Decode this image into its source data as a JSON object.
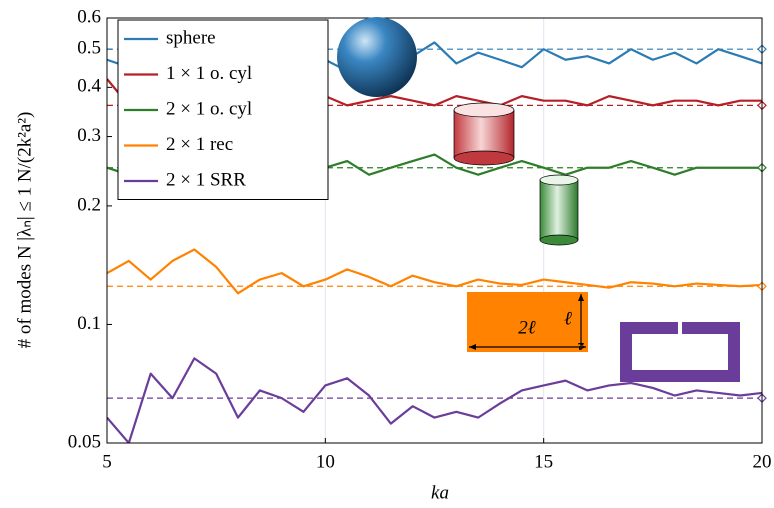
{
  "chart_data": {
    "type": "line",
    "x_label": "ka",
    "y_label": "# of modes N |λₙ| ≤ 1 N/(2k²a²)",
    "log_y": true,
    "grid": "x",
    "legend": "upper left",
    "xlim": [
      5,
      20
    ],
    "xticks": [
      5,
      10,
      15,
      20
    ],
    "ylim": [
      0.05,
      0.6
    ],
    "yticks": [
      0.05,
      0.1,
      0.2,
      0.3,
      0.4,
      0.5,
      0.6
    ],
    "annotations": [
      "2ℓ",
      "ℓ"
    ],
    "x": [
      5,
      5.5,
      6,
      6.5,
      7,
      7.5,
      8,
      8.5,
      9,
      9.5,
      10,
      10.5,
      11,
      11.5,
      12,
      12.5,
      13,
      13.5,
      14,
      14.5,
      15,
      15.5,
      16,
      16.5,
      17,
      17.5,
      18,
      18.5,
      19,
      19.5,
      20
    ],
    "series": [
      {
        "name": "sphere",
        "color": "#2b7bb4",
        "asymptote": 0.5,
        "values": [
          0.47,
          0.45,
          0.5,
          0.44,
          0.48,
          0.52,
          0.45,
          0.49,
          0.46,
          0.5,
          0.47,
          0.44,
          0.5,
          0.45,
          0.48,
          0.52,
          0.46,
          0.49,
          0.47,
          0.45,
          0.5,
          0.47,
          0.48,
          0.46,
          0.5,
          0.47,
          0.49,
          0.46,
          0.5,
          0.48,
          0.46
        ]
      },
      {
        "name": "1 × 1 o. cyl",
        "color": "#b52026",
        "asymptote": 0.36,
        "values": [
          0.42,
          0.36,
          0.38,
          0.37,
          0.39,
          0.36,
          0.38,
          0.37,
          0.39,
          0.37,
          0.38,
          0.36,
          0.37,
          0.38,
          0.37,
          0.36,
          0.38,
          0.37,
          0.36,
          0.38,
          0.37,
          0.37,
          0.36,
          0.38,
          0.37,
          0.36,
          0.37,
          0.37,
          0.36,
          0.37,
          0.37
        ]
      },
      {
        "name": "2 × 1 o. cyl",
        "color": "#2e7d2a",
        "asymptote": 0.25,
        "values": [
          0.25,
          0.24,
          0.26,
          0.25,
          0.24,
          0.25,
          0.26,
          0.24,
          0.25,
          0.24,
          0.25,
          0.26,
          0.24,
          0.25,
          0.26,
          0.27,
          0.25,
          0.24,
          0.25,
          0.26,
          0.25,
          0.24,
          0.25,
          0.25,
          0.26,
          0.25,
          0.24,
          0.25,
          0.25,
          0.25,
          0.25
        ]
      },
      {
        "name": "2 × 1 rec",
        "color": "#ff8200",
        "asymptote": 0.125,
        "values": [
          0.135,
          0.145,
          0.13,
          0.145,
          0.155,
          0.14,
          0.12,
          0.13,
          0.135,
          0.125,
          0.13,
          0.138,
          0.132,
          0.125,
          0.133,
          0.128,
          0.125,
          0.13,
          0.127,
          0.126,
          0.13,
          0.128,
          0.126,
          0.124,
          0.128,
          0.127,
          0.125,
          0.127,
          0.126,
          0.125,
          0.126
        ]
      },
      {
        "name": "2 × 1 SRR",
        "color": "#6a3d9a",
        "asymptote": 0.065,
        "values": [
          0.058,
          0.05,
          0.075,
          0.065,
          0.082,
          0.075,
          0.058,
          0.068,
          0.065,
          0.06,
          0.07,
          0.073,
          0.066,
          0.056,
          0.062,
          0.058,
          0.06,
          0.058,
          0.063,
          0.068,
          0.07,
          0.072,
          0.068,
          0.07,
          0.071,
          0.069,
          0.066,
          0.068,
          0.067,
          0.066,
          0.067
        ]
      }
    ]
  }
}
